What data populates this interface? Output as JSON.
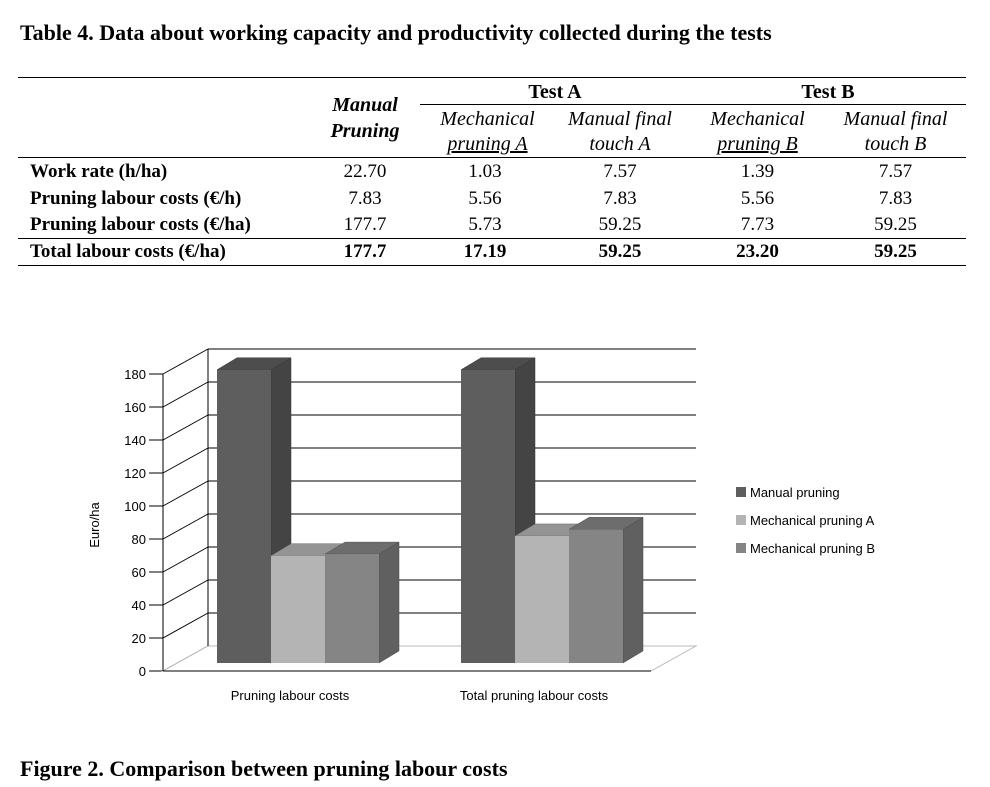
{
  "table": {
    "title": "Table 4. Data about working capacity and productivity collected during the tests",
    "header": {
      "manual_line1": "Manual",
      "manual_line2": "Pruning",
      "test_a": "Test A",
      "test_b": "Test B",
      "mech_a_line1": "Mechanical",
      "mech_a_line2": "pruning A",
      "final_a_line1": "Manual final",
      "final_a_line2": "touch A",
      "mech_b_line1": "Mechanical",
      "mech_b_line2": "pruning B",
      "final_b_line1": "Manual final",
      "final_b_line2": "touch B"
    },
    "rows": [
      {
        "label": "Work rate (h/ha)",
        "values": [
          "22.70",
          "1.03",
          "7.57",
          "1.39",
          "7.57"
        ]
      },
      {
        "label": "Pruning labour costs (€/h)",
        "values": [
          "7.83",
          "5.56",
          "7.83",
          "5.56",
          "7.83"
        ]
      },
      {
        "label": "Pruning labour costs (€/ha)",
        "values": [
          "177.7",
          "5.73",
          "59.25",
          "7.73",
          "59.25"
        ]
      },
      {
        "label": "Total  labour costs (€/ha)",
        "values": [
          "177.7",
          "17.19",
          "59.25",
          "23.20",
          "59.25"
        ]
      }
    ]
  },
  "chart_data": {
    "type": "bar",
    "ylabel": "Euro/ha",
    "ylim": [
      0,
      180
    ],
    "yticks": [
      "0",
      "20",
      "40",
      "60",
      "80",
      "100",
      "120",
      "140",
      "160",
      "180"
    ],
    "categories": [
      "Pruning labour costs",
      "Total pruning labour costs"
    ],
    "series": [
      {
        "name": "Manual pruning",
        "values": [
          177.7,
          177.7
        ],
        "color": "#5e5e5e"
      },
      {
        "name": "Mechanical pruning A",
        "values": [
          65,
          77
        ],
        "color": "#b4b4b4"
      },
      {
        "name": "Mechanical pruning B",
        "values": [
          66,
          81
        ],
        "color": "#858585"
      }
    ],
    "legend_position": "right",
    "grid": true
  },
  "figure": {
    "caption": "Figure 2. Comparison between pruning labour costs"
  }
}
